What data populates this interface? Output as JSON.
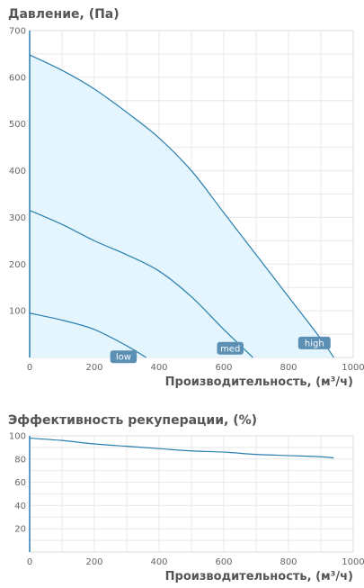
{
  "chart_data": [
    {
      "type": "line",
      "title": "Давление, (Па)",
      "xlabel": "Производительность, (м³/ч)",
      "ylabel": "",
      "xlim": [
        0,
        1000
      ],
      "ylim": [
        0,
        700
      ],
      "xticks": [
        0,
        200,
        400,
        600,
        800,
        1000
      ],
      "yticks": [
        100,
        200,
        300,
        400,
        500,
        600,
        700
      ],
      "grid": true,
      "series": [
        {
          "name": "high",
          "x": [
            0,
            100,
            200,
            300,
            400,
            500,
            600,
            700,
            800,
            900,
            940
          ],
          "y": [
            648,
            615,
            575,
            525,
            470,
            400,
            310,
            220,
            130,
            40,
            0
          ]
        },
        {
          "name": "med",
          "x": [
            0,
            100,
            200,
            300,
            400,
            500,
            600,
            690
          ],
          "y": [
            315,
            285,
            250,
            220,
            185,
            130,
            60,
            0
          ]
        },
        {
          "name": "low",
          "x": [
            0,
            100,
            200,
            300,
            360
          ],
          "y": [
            95,
            80,
            60,
            25,
            0
          ]
        }
      ],
      "colors": {
        "line": "#2a7fb0",
        "fill": "#e4f5fd",
        "badge": "#5b8fb3",
        "grid": "#e8e8e8"
      }
    },
    {
      "type": "line",
      "title": "Эффективность рекуперации, (%)",
      "xlabel": "Производительность, (м³/ч)",
      "ylabel": "",
      "xlim": [
        0,
        1000
      ],
      "ylim": [
        0,
        100
      ],
      "xticks": [
        0,
        200,
        400,
        600,
        800,
        1000
      ],
      "yticks": [
        20,
        40,
        60,
        80,
        100
      ],
      "grid": true,
      "series": [
        {
          "x": [
            0,
            100,
            200,
            300,
            400,
            500,
            600,
            700,
            800,
            900,
            940
          ],
          "y": [
            98,
            96,
            93,
            91,
            89,
            87,
            86,
            84,
            83,
            82,
            81
          ]
        }
      ],
      "colors": {
        "line": "#2a7fb0",
        "grid": "#e8e8e8"
      }
    }
  ]
}
